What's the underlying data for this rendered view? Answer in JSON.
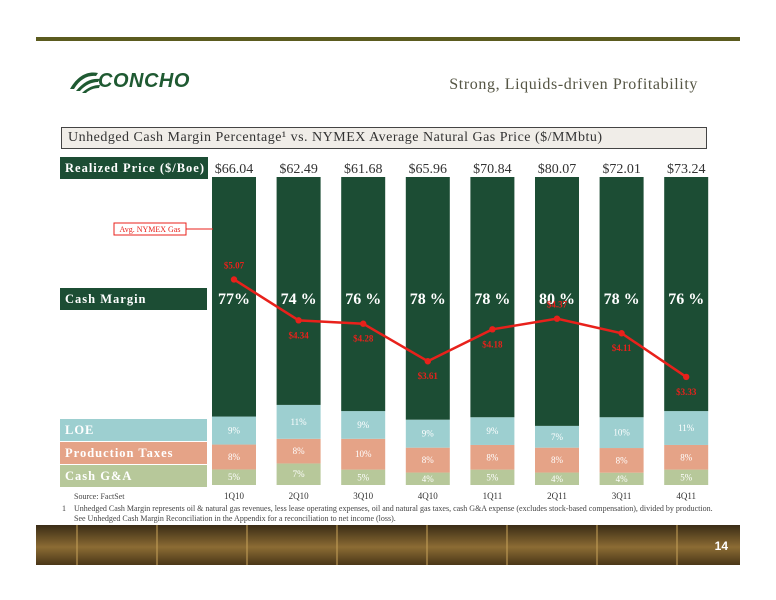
{
  "header": {
    "company": "CONCHO",
    "slide_title": "Strong, Liquids-driven Profitability"
  },
  "chart_title": "Unhedged Cash Margin Percentage¹ vs. NYMEX Average Natural Gas Price ($/MMbtu)",
  "row_labels": {
    "realized_price": "Realized Price ($/Boe)",
    "cash_margin": "Cash Margin",
    "loe": "LOE",
    "production_taxes": "Production Taxes",
    "cash_ga": "Cash G&A"
  },
  "colors": {
    "cash_margin": "#1c4d34",
    "loe": "#9dcfd0",
    "production_taxes": "#e5a387",
    "cash_ga": "#b7c89a",
    "nymex_line": "#e8211b"
  },
  "chart_data": {
    "type": "bar",
    "stacked": true,
    "categories": [
      "1Q10",
      "2Q10",
      "3Q10",
      "4Q10",
      "1Q11",
      "2Q11",
      "3Q11",
      "4Q11"
    ],
    "realized_price": [
      "$66.04",
      "$62.49",
      "$61.68",
      "$65.96",
      "$70.84",
      "$80.07",
      "$72.01",
      "$73.24"
    ],
    "series": [
      {
        "name": "Cash G&A",
        "values": [
          5,
          7,
          5,
          4,
          5,
          4,
          4,
          5
        ],
        "labels": [
          "5%",
          "7%",
          "5%",
          "4%",
          "5%",
          "4%",
          "4%",
          "5%"
        ]
      },
      {
        "name": "Production Taxes",
        "values": [
          8,
          8,
          10,
          8,
          8,
          8,
          8,
          8
        ],
        "labels": [
          "8%",
          "8%",
          "10%",
          "8%",
          "8%",
          "8%",
          "8%",
          "8%"
        ]
      },
      {
        "name": "LOE",
        "values": [
          9,
          11,
          9,
          9,
          9,
          7,
          10,
          11
        ],
        "labels": [
          "9%",
          "11%",
          "9%",
          "9%",
          "9%",
          "7%",
          "10%",
          "11%"
        ]
      },
      {
        "name": "Cash Margin",
        "values": [
          77,
          74,
          76,
          78,
          78,
          80,
          78,
          76
        ],
        "labels": [
          "77%",
          "74 %",
          "76 %",
          "78 %",
          "78 %",
          "80 %",
          "78 %",
          "76 %"
        ]
      }
    ],
    "line": {
      "name": "Avg. NYMEX Gas",
      "values": [
        5.07,
        4.34,
        4.28,
        3.61,
        4.18,
        4.37,
        4.11,
        3.33
      ],
      "labels": [
        "$5.07",
        "$4.34",
        "$4.28",
        "$3.61",
        "$4.18",
        "$4.37",
        "$4.11",
        "$3.33"
      ]
    },
    "ylim": [
      0,
      100
    ]
  },
  "footer": {
    "source": "Source: FactSet",
    "footnote_number": "1",
    "footnote_text": "Unhedged Cash Margin represents oil & natural gas revenues, less lease operating expenses, oil and natural gas taxes, cash G&A expense (excludes stock-based compensation), divided by production. See Unhedged Cash Margin Reconciliation in the Appendix for a reconciliation to net income (loss).",
    "page_number": "14"
  }
}
